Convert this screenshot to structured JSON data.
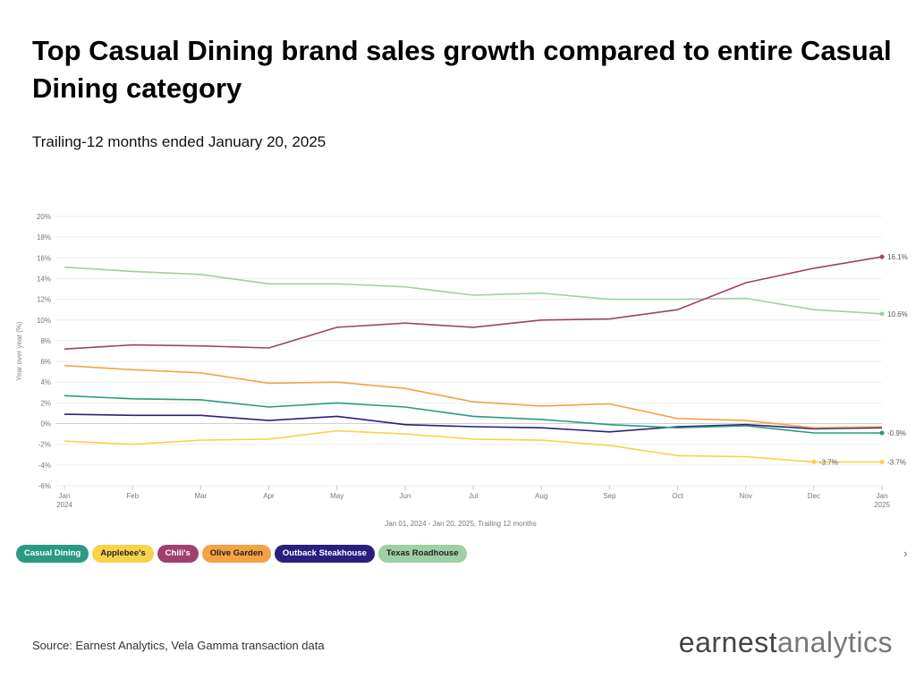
{
  "header": {
    "title": "Top Casual Dining brand sales growth compared to entire Casual Dining category",
    "subtitle": "Trailing-12 months ended January 20, 2025"
  },
  "footer": {
    "source": "Source: Earnest Analytics, Vela Gamma transaction data",
    "logo_part1": "earnest",
    "logo_part2": "analytics"
  },
  "legend_next_glyph": "›",
  "chart_data": {
    "type": "line",
    "ylabel": "Year over year (%)",
    "xlabel": "Jan 01, 2024 - Jan 20, 2025, Trailing 12 months",
    "ylim": [
      -6,
      20
    ],
    "yticks": [
      -6,
      -4,
      -2,
      0,
      2,
      4,
      6,
      8,
      10,
      12,
      14,
      16,
      18,
      20
    ],
    "yticklabels": [
      "-6%",
      "-4%",
      "-2%",
      "0%",
      "2%",
      "4%",
      "6%",
      "8%",
      "10%",
      "12%",
      "14%",
      "16%",
      "18%",
      "20%"
    ],
    "categories": [
      "Jan",
      "Feb",
      "Mar",
      "Apr",
      "May",
      "Jun",
      "Jul",
      "Aug",
      "Sep",
      "Oct",
      "Nov",
      "Dec",
      "Jan"
    ],
    "category_sublabels": [
      "2024",
      "",
      "",
      "",
      "",
      "",
      "",
      "",
      "",
      "",
      "",
      "",
      "2025"
    ],
    "grid": true,
    "legend_position": "bottom-left",
    "series": [
      {
        "name": "Casual Dining",
        "color": "#2a9a80",
        "values": [
          2.7,
          2.4,
          2.3,
          1.6,
          2.0,
          1.6,
          0.7,
          0.4,
          -0.1,
          -0.4,
          -0.2,
          -0.9,
          -0.9
        ],
        "end_label": "-0.9%"
      },
      {
        "name": "Applebee's",
        "color": "#f6d34a",
        "values": [
          -1.7,
          -2.0,
          -1.6,
          -1.5,
          -0.7,
          -1.0,
          -1.5,
          -1.6,
          -2.1,
          -3.1,
          -3.2,
          -3.7,
          -3.7
        ],
        "end_label": "-3.7%",
        "extra_labels": [
          {
            "index": 11,
            "label": "-3.7%"
          }
        ]
      },
      {
        "name": "Chili's",
        "color": "#a0406e",
        "values": [
          7.2,
          7.6,
          7.5,
          7.3,
          9.3,
          9.7,
          9.3,
          10.0,
          10.1,
          11.0,
          13.6,
          15.0,
          16.1
        ],
        "end_label": "16.1%"
      },
      {
        "name": "Olive Garden",
        "color": "#f4a244",
        "values": [
          5.6,
          5.2,
          4.9,
          3.9,
          4.0,
          3.4,
          2.1,
          1.7,
          1.9,
          0.5,
          0.3,
          -0.4,
          -0.3
        ],
        "end_label": ""
      },
      {
        "name": "Outback Steakhouse",
        "color": "#2a1f7e",
        "values": [
          0.9,
          0.8,
          0.8,
          0.3,
          0.7,
          -0.1,
          -0.3,
          -0.4,
          -0.8,
          -0.3,
          -0.1,
          -0.5,
          -0.4
        ],
        "end_label": ""
      },
      {
        "name": "Texas Roadhouse",
        "color": "#9fd0a3",
        "values": [
          15.1,
          14.7,
          14.4,
          13.5,
          13.5,
          13.2,
          12.4,
          12.6,
          12.0,
          12.0,
          12.1,
          11.0,
          10.6
        ],
        "end_label": "10.6%"
      }
    ]
  },
  "legend_text_colors": {
    "Casual Dining": "#ffffff",
    "Applebee's": "#222222",
    "Chili's": "#ffffff",
    "Olive Garden": "#222222",
    "Outback Steakhouse": "#ffffff",
    "Texas Roadhouse": "#222222"
  }
}
